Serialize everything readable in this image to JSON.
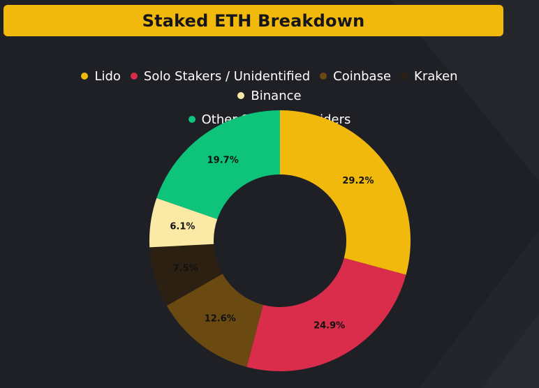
{
  "title": "Staked ETH Breakdown",
  "colors": {
    "background": "#1e2026",
    "title_bar": "#f0b90b",
    "title_text": "#16161a",
    "label_text": "#111111",
    "legend_text": "#ffffff"
  },
  "chart_data": {
    "type": "pie",
    "donut": true,
    "legend_position": "top",
    "start_angle_deg": 0,
    "direction": "clockwise",
    "slices": [
      {
        "label": "Lido",
        "value": 29.2,
        "display": "29.2%",
        "color": "#f0b90b"
      },
      {
        "label": "Solo Stakers / Unidentified",
        "value": 24.9,
        "display": "24.9%",
        "color": "#d92d4b"
      },
      {
        "label": "Coinbase",
        "value": 12.6,
        "display": "12.6%",
        "color": "#6b4a12"
      },
      {
        "label": "Kraken",
        "value": 7.5,
        "display": "7.5%",
        "color": "#2b2012"
      },
      {
        "label": "Binance",
        "value": 6.1,
        "display": "6.1%",
        "color": "#fbeaa6"
      },
      {
        "label": "Other Staking Providers",
        "value": 19.7,
        "display": "19.7%",
        "color": "#0ec47b"
      }
    ]
  }
}
